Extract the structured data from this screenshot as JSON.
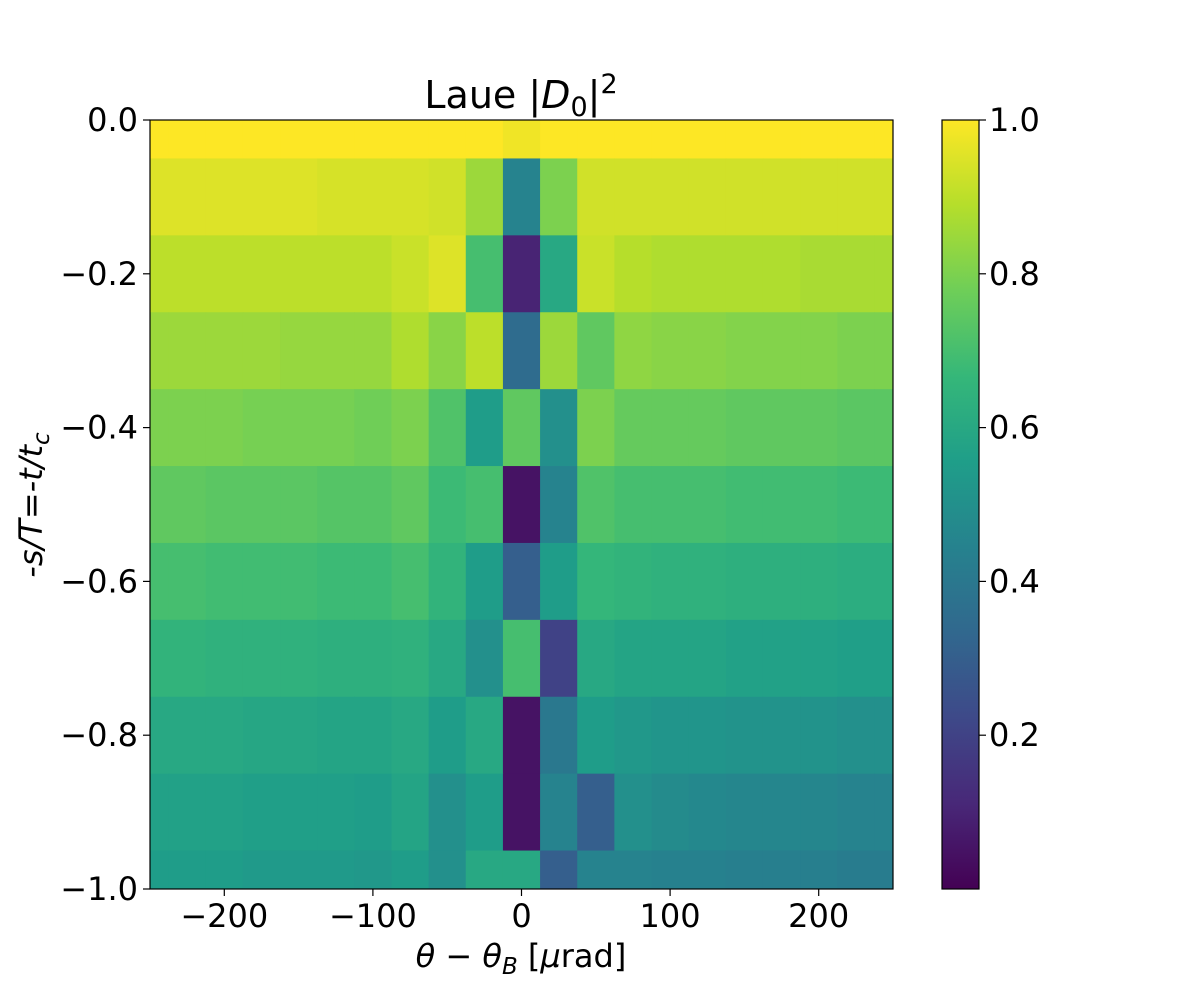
{
  "chart_data": {
    "type": "heatmap",
    "title": [
      "Laue |",
      "D",
      "0",
      "|",
      "2"
    ],
    "xlabel": [
      "θ − θ",
      "B",
      " [",
      "μ",
      "rad]"
    ],
    "ylabel": [
      "-s/T=-t/t",
      "c"
    ],
    "colormap": "viridis",
    "x": [
      -250,
      -225,
      -200,
      -175,
      -150,
      -125,
      -100,
      -75,
      -50,
      -25,
      0,
      25,
      50,
      75,
      100,
      125,
      150,
      175,
      200,
      225,
      250
    ],
    "y": [
      0,
      -0.1,
      -0.2,
      -0.3,
      -0.4,
      -0.5,
      -0.6,
      -0.7,
      -0.8,
      -0.9,
      -1
    ],
    "values": [
      [
        1,
        1,
        1,
        1,
        1,
        1,
        1,
        1,
        1,
        1,
        0.98,
        1,
        1,
        1,
        1,
        1,
        1,
        1,
        1,
        1,
        1
      ],
      [
        0.95,
        0.95,
        0.95,
        0.95,
        0.95,
        0.94,
        0.94,
        0.94,
        0.93,
        0.85,
        0.45,
        0.8,
        0.93,
        0.93,
        0.93,
        0.93,
        0.93,
        0.93,
        0.93,
        0.93,
        0.93
      ],
      [
        0.9,
        0.9,
        0.9,
        0.9,
        0.9,
        0.9,
        0.9,
        0.92,
        0.95,
        0.7,
        0.1,
        0.6,
        0.92,
        0.89,
        0.88,
        0.88,
        0.88,
        0.88,
        0.87,
        0.87,
        0.87
      ],
      [
        0.85,
        0.85,
        0.85,
        0.85,
        0.84,
        0.84,
        0.84,
        0.88,
        0.82,
        0.9,
        0.35,
        0.85,
        0.75,
        0.83,
        0.82,
        0.82,
        0.81,
        0.81,
        0.81,
        0.8,
        0.8
      ],
      [
        0.8,
        0.8,
        0.8,
        0.79,
        0.79,
        0.79,
        0.78,
        0.8,
        0.72,
        0.55,
        0.75,
        0.5,
        0.8,
        0.76,
        0.76,
        0.76,
        0.75,
        0.75,
        0.75,
        0.74,
        0.74
      ],
      [
        0.75,
        0.75,
        0.74,
        0.74,
        0.74,
        0.73,
        0.73,
        0.75,
        0.68,
        0.7,
        0.05,
        0.45,
        0.72,
        0.7,
        0.7,
        0.7,
        0.69,
        0.69,
        0.69,
        0.68,
        0.68
      ],
      [
        0.7,
        0.7,
        0.69,
        0.69,
        0.69,
        0.68,
        0.68,
        0.7,
        0.65,
        0.55,
        0.3,
        0.55,
        0.66,
        0.65,
        0.64,
        0.64,
        0.63,
        0.63,
        0.63,
        0.62,
        0.62
      ],
      [
        0.65,
        0.65,
        0.64,
        0.64,
        0.64,
        0.63,
        0.63,
        0.64,
        0.6,
        0.5,
        0.7,
        0.2,
        0.6,
        0.58,
        0.58,
        0.58,
        0.57,
        0.57,
        0.57,
        0.56,
        0.56
      ],
      [
        0.6,
        0.6,
        0.6,
        0.59,
        0.59,
        0.58,
        0.58,
        0.6,
        0.55,
        0.6,
        0.05,
        0.4,
        0.55,
        0.53,
        0.52,
        0.52,
        0.51,
        0.51,
        0.51,
        0.5,
        0.5
      ],
      [
        0.57,
        0.57,
        0.57,
        0.56,
        0.56,
        0.56,
        0.55,
        0.58,
        0.5,
        0.55,
        0.05,
        0.45,
        0.3,
        0.5,
        0.48,
        0.47,
        0.46,
        0.46,
        0.46,
        0.45,
        0.45
      ],
      [
        0.55,
        0.55,
        0.55,
        0.54,
        0.54,
        0.54,
        0.53,
        0.55,
        0.5,
        0.6,
        0.6,
        0.3,
        0.45,
        0.45,
        0.44,
        0.44,
        0.43,
        0.43,
        0.43,
        0.42,
        0.42
      ]
    ],
    "xlim": [
      -250,
      250
    ],
    "ylim": [
      -1,
      0
    ],
    "xticks": [
      {
        "value": -200,
        "label": "−200"
      },
      {
        "value": -100,
        "label": "−100"
      },
      0,
      100,
      200
    ],
    "yticks": [
      {
        "value": 0,
        "label": "0.0"
      },
      {
        "value": -0.2,
        "label": "−0.2"
      },
      {
        "value": -0.4,
        "label": "−0.4"
      },
      {
        "value": -0.6,
        "label": "−0.6"
      },
      {
        "value": -0.8,
        "label": "−0.8"
      },
      {
        "value": -1,
        "label": "−1.0"
      }
    ],
    "clim": [
      0,
      1
    ],
    "cticks": [
      0.2,
      0.4,
      0.6,
      0.8,
      {
        "value": 1,
        "label": "1.0"
      }
    ]
  }
}
